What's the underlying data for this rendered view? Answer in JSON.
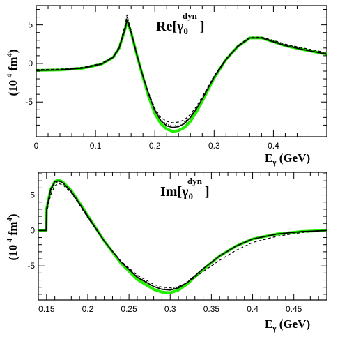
{
  "chart_data": [
    {
      "type": "line",
      "title_main": "Re[",
      "title_sym": "γ",
      "title_sub": "0",
      "title_sup": "dyn",
      "title_close": "]",
      "xlabel_main": "E",
      "xlabel_sub": "γ",
      "xlabel_unit": " (GeV)",
      "ylabel_left": "(10",
      "ylabel_exp1": "-4",
      "ylabel_mid": " fm",
      "ylabel_exp2": "4",
      "ylabel_right": ")",
      "xlim": [
        0,
        0.49
      ],
      "ylim": [
        -9.5,
        7.5
      ],
      "xticks": [
        0,
        0.1,
        0.2,
        0.3,
        0.4
      ],
      "xtick_labels": [
        "0",
        "0.1",
        "0.2",
        "0.3",
        "0.4"
      ],
      "yticks": [
        -5,
        0,
        5
      ],
      "ytick_labels": [
        "-5",
        "0",
        "5"
      ],
      "x": [
        0,
        0.04,
        0.08,
        0.11,
        0.13,
        0.14,
        0.15,
        0.153,
        0.16,
        0.17,
        0.18,
        0.19,
        0.2,
        0.21,
        0.22,
        0.23,
        0.24,
        0.25,
        0.26,
        0.27,
        0.28,
        0.29,
        0.3,
        0.32,
        0.34,
        0.36,
        0.38,
        0.4,
        0.42,
        0.45,
        0.49
      ],
      "series": [
        {
          "style": "band",
          "color": "#22ee00",
          "values": [
            -0.9,
            -0.85,
            -0.6,
            -0.1,
            0.8,
            2.0,
            4.5,
            5.6,
            4.0,
            1.0,
            -1.8,
            -4.4,
            -6.5,
            -7.8,
            -8.5,
            -8.8,
            -8.7,
            -8.3,
            -7.5,
            -6.3,
            -4.9,
            -3.4,
            -1.9,
            0.5,
            2.2,
            3.3,
            3.3,
            2.8,
            2.3,
            1.8,
            1.2
          ]
        },
        {
          "style": "solid",
          "color": "#000000",
          "values": [
            -0.9,
            -0.85,
            -0.6,
            -0.1,
            0.8,
            2.0,
            4.5,
            5.6,
            4.0,
            1.0,
            -1.7,
            -4.1,
            -6.1,
            -7.4,
            -8.1,
            -8.3,
            -8.2,
            -7.8,
            -7.0,
            -5.9,
            -4.6,
            -3.2,
            -1.8,
            0.5,
            2.2,
            3.3,
            3.3,
            2.8,
            2.3,
            1.8,
            1.2
          ]
        },
        {
          "style": "dashed",
          "color": "#000000",
          "values": [
            -0.8,
            -0.75,
            -0.5,
            0.0,
            0.9,
            2.2,
            5.0,
            6.3,
            4.2,
            1.1,
            -1.6,
            -3.9,
            -5.8,
            -7.0,
            -7.5,
            -7.7,
            -7.6,
            -7.3,
            -6.6,
            -5.6,
            -4.3,
            -3.0,
            -1.6,
            0.6,
            2.3,
            3.4,
            3.4,
            3.0,
            2.5,
            2.0,
            1.4
          ]
        },
        {
          "style": "dotted",
          "color": "#000000",
          "values": [
            -0.85,
            -0.8,
            -0.55,
            -0.05,
            0.85,
            2.1,
            4.8,
            6.0,
            4.1,
            1.0,
            -1.7,
            -4.0,
            -6.0,
            -7.3,
            -7.9,
            -8.1,
            -8.0,
            -7.6,
            -6.9,
            -5.8,
            -4.5,
            -3.1,
            -1.7,
            0.55,
            2.2,
            3.3,
            3.3,
            2.9,
            2.4,
            1.9,
            1.3
          ]
        }
      ]
    },
    {
      "type": "line",
      "title_main": "Im[",
      "title_sym": "γ",
      "title_sub": "0",
      "title_sup": "dyn",
      "title_close": "]",
      "xlabel_main": "E",
      "xlabel_sub": "γ",
      "xlabel_unit": " (GeV)",
      "ylabel_left": "(10",
      "ylabel_exp1": "-4",
      "ylabel_mid": " fm",
      "ylabel_exp2": "4",
      "ylabel_right": ")",
      "xlim": [
        0.14,
        0.49
      ],
      "ylim": [
        -9.8,
        8.2
      ],
      "xticks": [
        0.15,
        0.2,
        0.25,
        0.3,
        0.35,
        0.4,
        0.45
      ],
      "xtick_labels": [
        "0.15",
        "0.2",
        "0.25",
        "0.3",
        "0.35",
        "0.4",
        "0.45"
      ],
      "yticks": [
        -5,
        0,
        5
      ],
      "ytick_labels": [
        "-5",
        "0",
        "5"
      ],
      "x": [
        0.14,
        0.1495,
        0.15,
        0.155,
        0.16,
        0.165,
        0.17,
        0.18,
        0.19,
        0.2,
        0.22,
        0.24,
        0.26,
        0.28,
        0.29,
        0.3,
        0.31,
        0.32,
        0.34,
        0.36,
        0.38,
        0.4,
        0.43,
        0.46,
        0.49
      ],
      "series": [
        {
          "style": "band",
          "color": "#22ee00",
          "values": [
            0,
            0,
            3.0,
            5.8,
            6.9,
            7.1,
            6.8,
            5.6,
            3.9,
            2.1,
            -1.5,
            -4.6,
            -6.9,
            -8.3,
            -8.7,
            -8.8,
            -8.4,
            -7.6,
            -5.5,
            -3.6,
            -2.2,
            -1.2,
            -0.5,
            -0.15,
            0
          ]
        },
        {
          "style": "solid",
          "color": "#000000",
          "values": [
            0,
            0,
            3.0,
            5.8,
            6.9,
            7.0,
            6.7,
            5.5,
            3.8,
            2.0,
            -1.5,
            -4.4,
            -6.6,
            -7.9,
            -8.3,
            -8.4,
            -8.1,
            -7.4,
            -5.4,
            -3.6,
            -2.2,
            -1.2,
            -0.5,
            -0.15,
            0
          ]
        },
        {
          "style": "dashed",
          "color": "#000000",
          "values": [
            0,
            0,
            2.5,
            5.0,
            6.3,
            6.6,
            6.4,
            5.3,
            3.6,
            1.8,
            -1.5,
            -4.3,
            -6.3,
            -7.6,
            -8.0,
            -8.1,
            -7.9,
            -7.4,
            -5.8,
            -4.2,
            -2.8,
            -1.7,
            -0.8,
            -0.3,
            0
          ]
        },
        {
          "style": "dotted",
          "color": "#000000",
          "values": [
            0,
            0,
            2.8,
            5.5,
            6.7,
            6.9,
            6.6,
            5.4,
            3.7,
            1.9,
            -1.5,
            -4.4,
            -6.5,
            -7.8,
            -8.2,
            -8.3,
            -8.0,
            -7.3,
            -5.4,
            -3.6,
            -2.2,
            -1.2,
            -0.5,
            -0.15,
            0
          ]
        }
      ]
    }
  ]
}
